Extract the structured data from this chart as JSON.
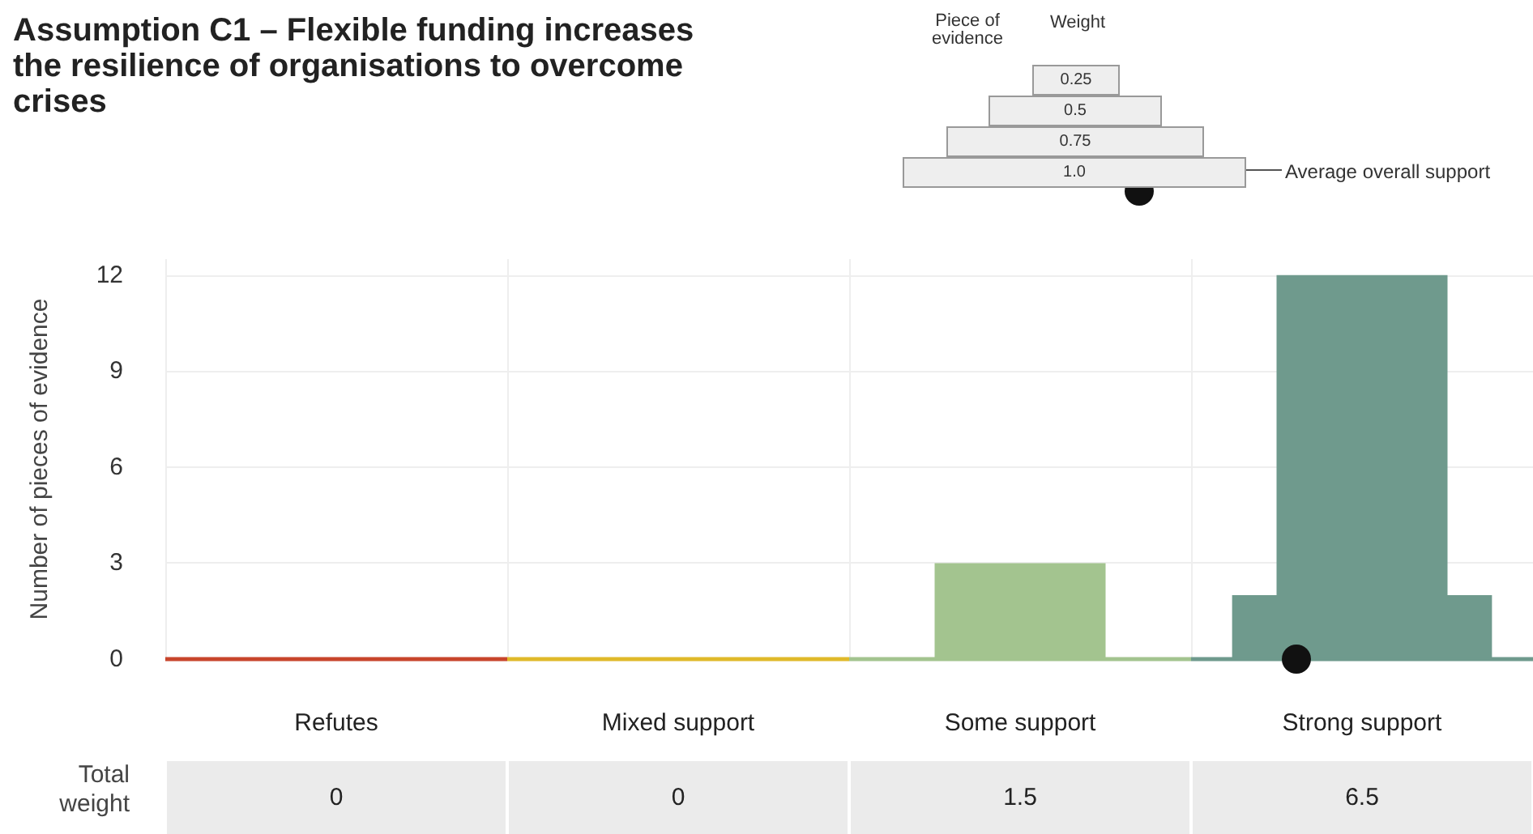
{
  "chart_data": {
    "type": "bar",
    "title": "Assumption C1 – Flexible funding increases the resilience of organisations to overcome crises",
    "ylabel": "Number of pieces of evidence",
    "categories": [
      "Refutes",
      "Mixed support",
      "Some support",
      "Strong support"
    ],
    "stacked": true,
    "ylim": [
      0,
      12.5
    ],
    "yticks": [
      0,
      3,
      6,
      9,
      12
    ],
    "grid": true,
    "series": [
      {
        "colors": [
          "#c8452c",
          "#e0b92a",
          "#a3c48f",
          "#6f9a8d"
        ],
        "values": [
          0,
          0,
          0,
          2
        ]
      },
      {
        "colors": [
          "#c8452c",
          "#e0b92a",
          "#a3c48f",
          "#6f9a8d"
        ],
        "values": [
          0,
          0,
          3,
          10
        ]
      }
    ],
    "annotations": [
      "Total weight",
      "0",
      "0",
      "1.5",
      "6.5",
      "Piece of evidence",
      "Weight",
      "0.25",
      "0.5",
      "0.75",
      "1.0",
      "Average overall support"
    ]
  }
}
